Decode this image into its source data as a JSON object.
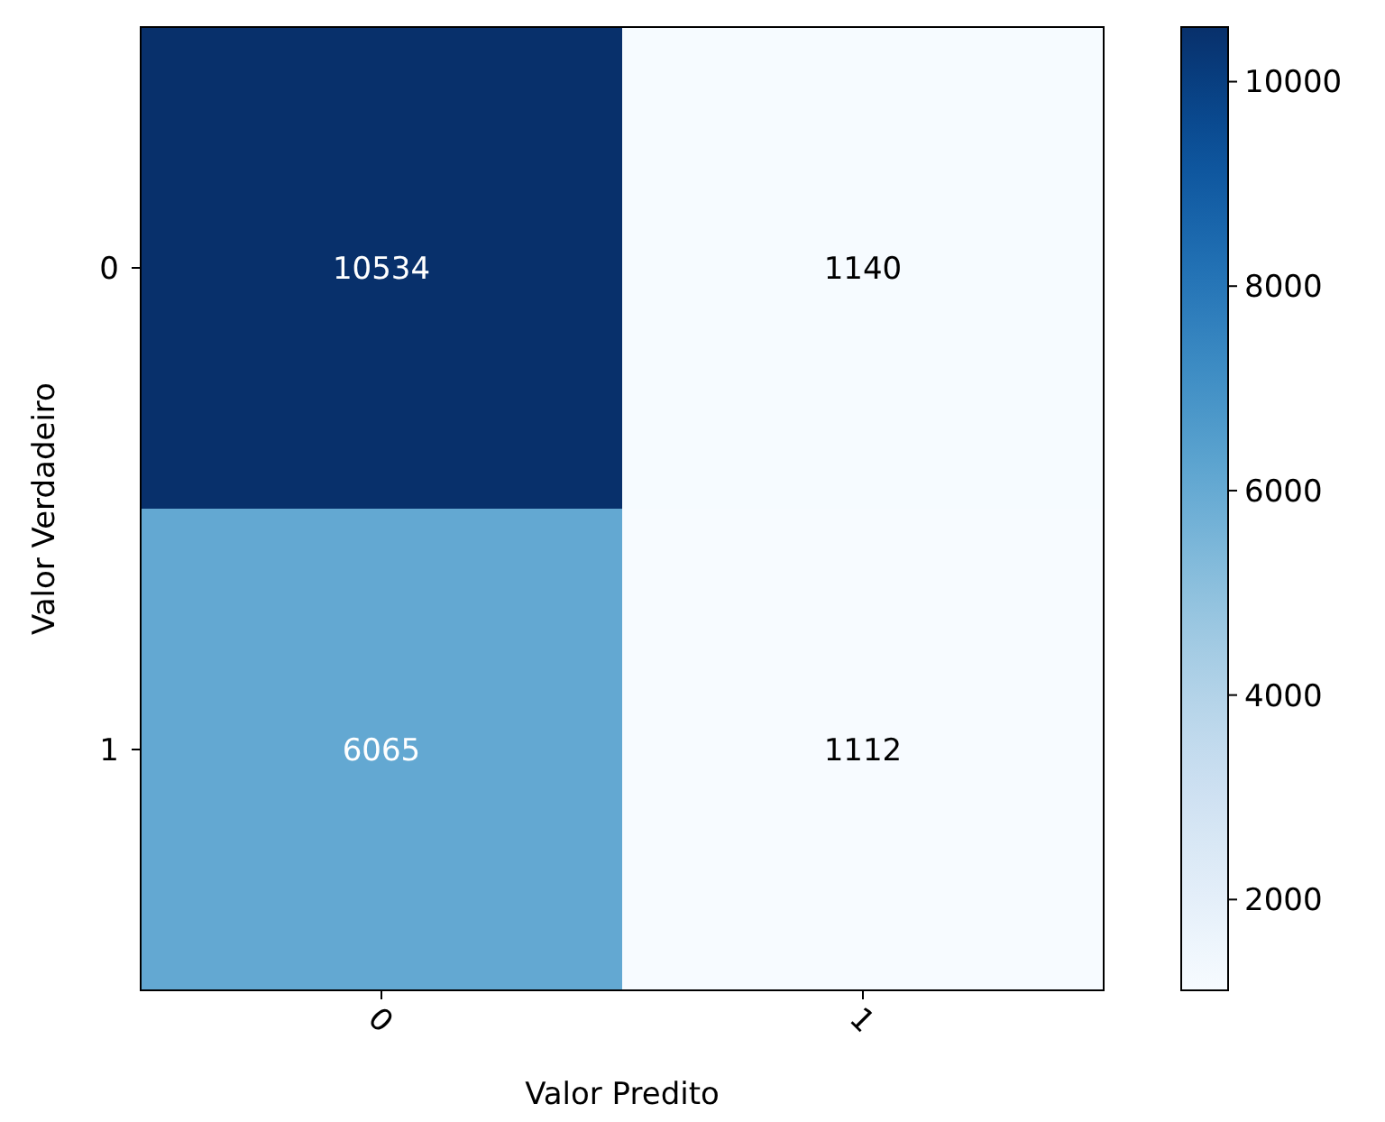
{
  "chart_data": {
    "type": "heatmap",
    "xlabel": "Valor Predito",
    "ylabel": "Valor Verdadeiro",
    "categories": [
      "0",
      "1"
    ],
    "y_categories": [
      "0",
      "1"
    ],
    "cells": [
      [
        10534,
        1140
      ],
      [
        6065,
        1112
      ]
    ],
    "clim": [
      1112,
      10534
    ],
    "cticks": [
      2000,
      4000,
      6000,
      8000,
      10000
    ],
    "data_labels": true
  }
}
